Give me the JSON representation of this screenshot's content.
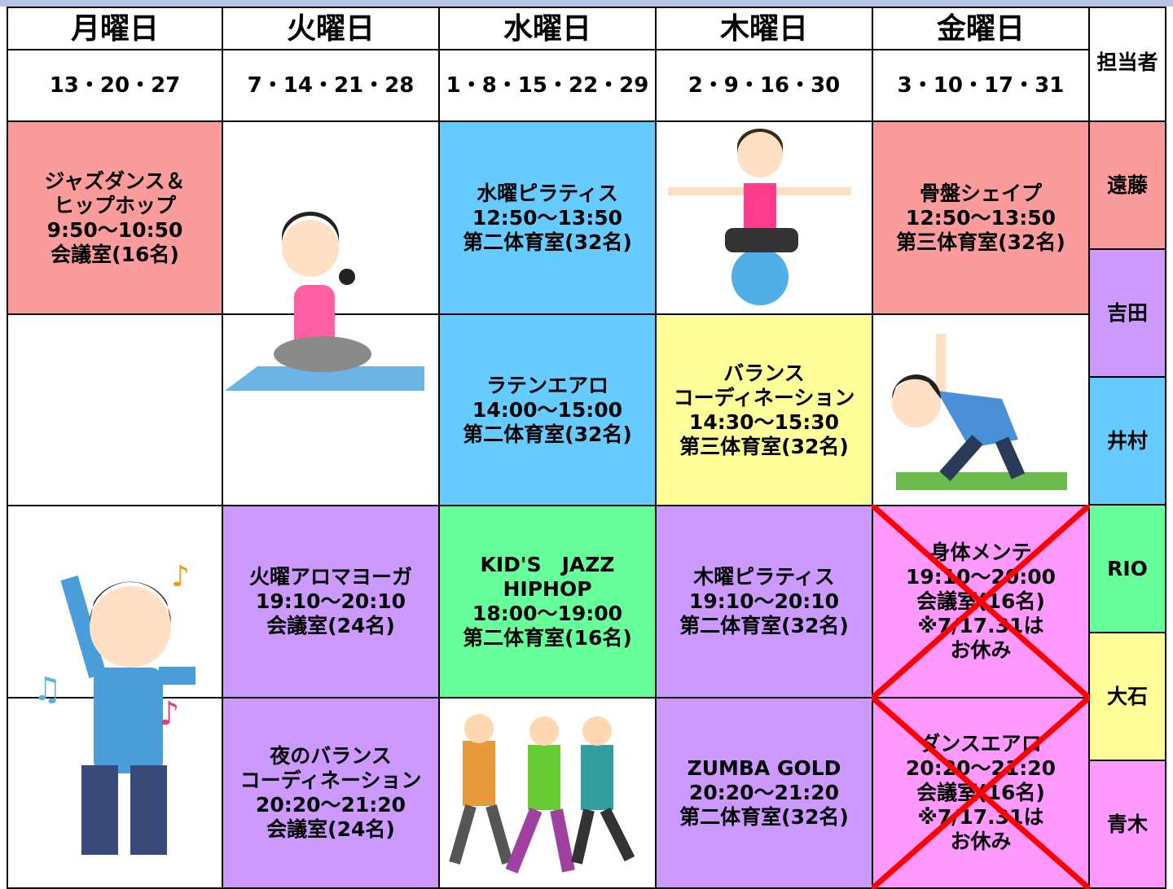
{
  "days": [
    "月曜日",
    "火曜日",
    "水曜日",
    "木曜日",
    "金曜日"
  ],
  "dates": [
    "13・20・27",
    "7・14・21・28",
    "1・8・15・22・29",
    "2・9・16・30",
    "3・10・17・31"
  ],
  "staff_header": "担当者",
  "staff": [
    {
      "name": "遠藤",
      "color": "#fb9b9b"
    },
    {
      "name": "吉田",
      "color": "#cc99ff"
    },
    {
      "name": "井村",
      "color": "#66ccff"
    },
    {
      "name": "RIO",
      "color": "#66ff99"
    },
    {
      "name": "大石",
      "color": "#ffff99"
    },
    {
      "name": "青木",
      "color": "#ff99ff"
    }
  ],
  "rows": [
    [
      {
        "lines": [
          "ジャズダンス＆",
          "ヒップホップ",
          "9:50～10:50",
          "会議室(16名)"
        ],
        "color": "#fb9b9b"
      },
      null,
      {
        "lines": [
          "水曜ピラティス",
          "12:50～13:50",
          "第二体育室(32名)"
        ],
        "color": "#66ccff"
      },
      null,
      {
        "lines": [
          "骨盤シェイプ",
          "12:50～13:50",
          "第三体育室(32名)"
        ],
        "color": "#fb9b9b"
      }
    ],
    [
      null,
      null,
      {
        "lines": [
          "ラテンエアロ",
          "14:00～15:00",
          "第二体育室(32名)"
        ],
        "color": "#66ccff"
      },
      {
        "lines": [
          "バランス",
          "コーディネーション",
          "14:30～15:30",
          "第三体育室(32名)"
        ],
        "color": "#ffff99"
      },
      null
    ],
    [
      null,
      {
        "lines": [
          "火曜アロマヨーガ",
          "19:10～20:10",
          "会議室(24名)"
        ],
        "color": "#cc99ff"
      },
      {
        "lines": [
          "KID'S　JAZZ",
          "HIPHOP",
          "18:00～19:00",
          "第二体育室(16名)"
        ],
        "color": "#66ff99"
      },
      {
        "lines": [
          "木曜ピラティス",
          "19:10～20:10",
          "第二体育室(32名)"
        ],
        "color": "#cc99ff"
      },
      {
        "lines": [
          "身体メンテ",
          "19:10～20:00",
          "会議室(16名)",
          "※7/17.31は",
          "お休み"
        ],
        "color": "#ff99ff",
        "cancelled": true
      }
    ],
    [
      null,
      {
        "lines": [
          "夜のバランス",
          "コーディネーション",
          "20:20～21:20",
          "会議室(24名)"
        ],
        "color": "#cc99ff"
      },
      null,
      {
        "lines": [
          "ZUMBA GOLD",
          "20:20～21:20",
          "第二体育室(32名)"
        ],
        "color": "#cc99ff"
      },
      {
        "lines": [
          "ダンスエアロ",
          "20:20～21:20",
          "会議室(16名)",
          "※7/17.31は",
          "お休み"
        ],
        "color": "#ff99ff",
        "cancelled": true
      }
    ]
  ]
}
